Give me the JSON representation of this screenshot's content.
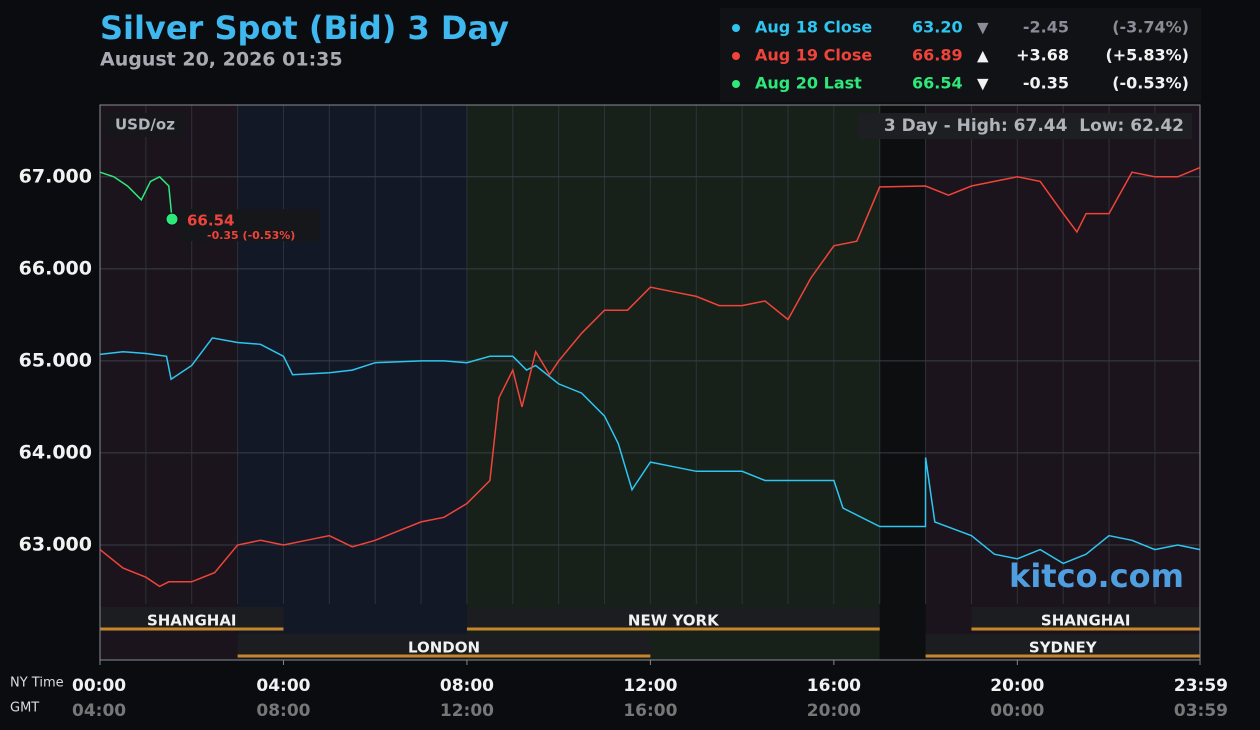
{
  "chart_data": {
    "type": "line",
    "title": "Silver Spot (Bid) 3 Day",
    "subtitle": "August 20, 2026 01:35",
    "unit_label": "USD/oz",
    "high_low": "3 Day - High: 67.44  Low: 62.42",
    "watermark": "kitco.com",
    "x_axis_label": "NY Time",
    "x2_axis_label": "GMT",
    "xlim": [
      0,
      23.983
    ],
    "xticks": [
      {
        "value": 0,
        "label": "00:00"
      },
      {
        "value": 4,
        "label": "04:00"
      },
      {
        "value": 8,
        "label": "08:00"
      },
      {
        "value": 12,
        "label": "12:00"
      },
      {
        "value": 16,
        "label": "16:00"
      },
      {
        "value": 20,
        "label": "20:00"
      },
      {
        "value": 23.983,
        "label": "23:59"
      }
    ],
    "x2tick_labels": [
      "04:00",
      "08:00",
      "12:00",
      "16:00",
      "20:00",
      "00:00",
      "03:59"
    ],
    "xgrid_step": 1,
    "ylim": [
      61.75,
      67.78
    ],
    "yticks": [
      {
        "value": 63,
        "label": "63.000"
      },
      {
        "value": 64,
        "label": "64.000"
      },
      {
        "value": 65,
        "label": "65.000"
      },
      {
        "value": 66,
        "label": "66.000"
      },
      {
        "value": 67,
        "label": "67.000"
      }
    ],
    "grid": true,
    "backgrounds": [
      {
        "start": 0,
        "end": 3,
        "color": "#1b141c"
      },
      {
        "start": 3,
        "end": 8,
        "color": "#131826"
      },
      {
        "start": 8,
        "end": 17,
        "color": "#17211a"
      },
      {
        "start": 17,
        "end": 18,
        "color": "#0d0e10"
      },
      {
        "start": 18,
        "end": 23.983,
        "color": "#1b141c"
      }
    ],
    "sessions": [
      {
        "name": "SHANGHAI",
        "start": 0,
        "end": 4,
        "row": 1
      },
      {
        "name": "LONDON",
        "start": 3,
        "end": 12,
        "row": 2
      },
      {
        "name": "NEW YORK",
        "start": 8,
        "end": 17,
        "row": 1
      },
      {
        "name": "SHANGHAI",
        "start": 19,
        "end": 23.983,
        "row": 1
      },
      {
        "name": "SYDNEY",
        "start": 18,
        "end": 23.983,
        "row": 2
      }
    ],
    "series": [
      {
        "name": "Aug 18 Close",
        "color": "#2ec5f0",
        "muted": true,
        "close": "63.20",
        "arrow": "▼",
        "change": "-2.45",
        "change_pct": "(-3.74%)",
        "x": [
          0,
          0.5,
          1,
          1.45,
          1.55,
          2,
          2.45,
          3,
          3.5,
          4,
          4.2,
          5,
          5.5,
          6,
          7,
          7.5,
          8,
          8.5,
          9,
          9.3,
          9.5,
          10,
          10.5,
          11,
          11.3,
          11.6,
          12,
          12.5,
          13,
          14,
          14.5,
          15,
          16,
          16.2,
          17,
          17.999,
          18,
          18.2,
          19,
          19.5,
          20,
          20.5,
          21,
          21.5,
          22,
          22.5,
          23,
          23.5,
          23.983
        ],
        "values": [
          65.07,
          65.1,
          65.08,
          65.05,
          64.8,
          64.95,
          65.25,
          65.2,
          65.18,
          65.05,
          64.85,
          64.87,
          64.9,
          64.98,
          65.0,
          65.0,
          64.98,
          65.05,
          65.05,
          64.9,
          64.95,
          64.75,
          64.65,
          64.4,
          64.1,
          63.6,
          63.9,
          63.85,
          63.8,
          63.8,
          63.7,
          63.7,
          63.7,
          63.4,
          63.2,
          63.2,
          63.95,
          63.25,
          63.1,
          62.9,
          62.85,
          62.95,
          62.8,
          62.9,
          63.1,
          63.05,
          62.95,
          63.0,
          62.95
        ]
      },
      {
        "name": "Aug 19 Close",
        "color": "#f0443a",
        "close": "66.89",
        "arrow": "▲",
        "change": "+3.68",
        "change_pct": "(+5.83%)",
        "x": [
          0,
          0.5,
          1,
          1.3,
          1.5,
          2,
          2.5,
          3,
          3.5,
          4,
          4.5,
          5,
          5.5,
          6,
          6.5,
          7,
          7.5,
          8,
          8.5,
          8.7,
          9,
          9.2,
          9.5,
          9.8,
          10,
          10.5,
          11,
          11.5,
          12,
          12.5,
          13,
          13.5,
          14,
          14.5,
          15,
          15.5,
          16,
          16.5,
          17,
          18,
          18.5,
          19,
          19.5,
          20,
          20.5,
          21,
          21.3,
          21.5,
          22,
          22.5,
          23,
          23.5,
          23.983
        ],
        "values": [
          62.95,
          62.75,
          62.65,
          62.55,
          62.6,
          62.6,
          62.7,
          63.0,
          63.05,
          63.0,
          63.05,
          63.1,
          62.98,
          63.05,
          63.15,
          63.25,
          63.3,
          63.45,
          63.7,
          64.6,
          64.9,
          64.5,
          65.1,
          64.85,
          65.0,
          65.3,
          65.55,
          65.55,
          65.8,
          65.75,
          65.7,
          65.6,
          65.6,
          65.65,
          65.45,
          65.9,
          66.25,
          66.3,
          66.89,
          66.9,
          66.8,
          66.9,
          66.95,
          67.0,
          66.95,
          66.6,
          66.4,
          66.6,
          66.6,
          67.05,
          67.0,
          67.0,
          67.1
        ]
      },
      {
        "name": "Aug 20 Last",
        "color": "#2ee87a",
        "close": "66.54",
        "arrow": "▼",
        "change": "-0.35",
        "change_pct": "(-0.53%)",
        "x": [
          0,
          0.3,
          0.6,
          0.9,
          1.1,
          1.3,
          1.5,
          1.57
        ],
        "values": [
          67.05,
          67.0,
          66.9,
          66.75,
          66.95,
          67.0,
          66.9,
          66.54
        ]
      }
    ],
    "last_point": {
      "series": 2,
      "label": "66.54",
      "change": "-0.35 (-0.53%)"
    }
  }
}
